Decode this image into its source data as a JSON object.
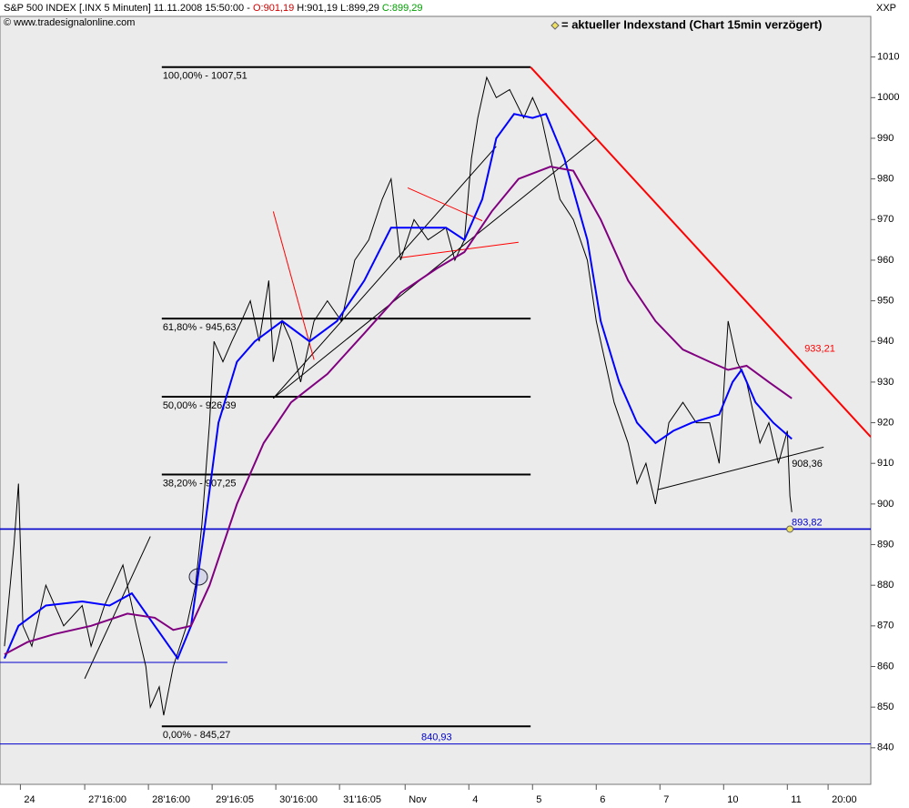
{
  "header": {
    "title": "S&P 500 INDEX [.INX  5 Minuten] 11.11.2008 15:50:00 -",
    "open": "O:901,19",
    "high_low": "H:901,19 L:899,29",
    "close": "C:899,29",
    "copyright": "© www.tradesignalonline.com",
    "legend": "= aktueller Indexstand (Chart 15min verzögert)",
    "corner": "XXP"
  },
  "chart_data": {
    "type": "line",
    "xlim": [
      -0.43,
      13.24
    ],
    "ylim": [
      831,
      1020
    ],
    "yticks": [
      840,
      850,
      860,
      870,
      880,
      890,
      900,
      910,
      920,
      930,
      940,
      950,
      960,
      970,
      980,
      990,
      1000,
      1010
    ],
    "xticks": [
      {
        "value": -0.11,
        "label": "24"
      },
      {
        "value": 0.9,
        "label": "27'16:00"
      },
      {
        "value": 1.9,
        "label": "28'16:00"
      },
      {
        "value": 2.9,
        "label": "29'16:05"
      },
      {
        "value": 3.9,
        "label": "30'16:00"
      },
      {
        "value": 4.9,
        "label": "31'16:05"
      },
      {
        "value": 5.93,
        "label": "Nov"
      },
      {
        "value": 6.93,
        "label": "4"
      },
      {
        "value": 7.93,
        "label": "5"
      },
      {
        "value": 8.93,
        "label": "6"
      },
      {
        "value": 9.93,
        "label": "7"
      },
      {
        "value": 10.93,
        "label": "10"
      },
      {
        "value": 11.93,
        "label": "11"
      },
      {
        "value": 12.57,
        "label": "20:00"
      }
    ],
    "series": [
      {
        "color": "#000000",
        "x": [
          -0.36,
          -0.21,
          -0.14,
          -0.07,
          0.07,
          0.29,
          0.57,
          0.86,
          1.0,
          1.21,
          1.5,
          1.71,
          1.86,
          1.93,
          2.07,
          2.14,
          2.29,
          2.5,
          2.64,
          2.74,
          2.86,
          2.93,
          3.07,
          3.21,
          3.36,
          3.5,
          3.64,
          3.79,
          3.86,
          4.0,
          4.14,
          4.29,
          4.5,
          4.71,
          4.93,
          5.14,
          5.36,
          5.57,
          5.71,
          5.86,
          6.07,
          6.29,
          6.57,
          6.71,
          6.86,
          6.97,
          7.07,
          7.21,
          7.36,
          7.57,
          7.79,
          7.93,
          8.07,
          8.21,
          8.36,
          8.57,
          8.79,
          8.93,
          9.07,
          9.21,
          9.43,
          9.57,
          9.71,
          9.86,
          10.07,
          10.29,
          10.5,
          10.71,
          10.86,
          11.0,
          11.14,
          11.29,
          11.5,
          11.64,
          11.79,
          11.93,
          11.97,
          12.0
        ],
        "values": [
          865,
          890,
          905,
          870,
          865,
          880,
          870,
          875,
          865,
          875,
          885,
          870,
          860,
          850,
          855,
          848,
          860,
          870,
          880,
          895,
          920,
          940,
          935,
          940,
          945,
          950,
          940,
          955,
          935,
          945,
          940,
          930,
          945,
          950,
          945,
          960,
          965,
          975,
          980,
          960,
          970,
          965,
          968,
          960,
          965,
          985,
          995,
          1005,
          1000,
          1002,
          995,
          1000,
          995,
          985,
          975,
          970,
          960,
          945,
          935,
          925,
          915,
          905,
          910,
          900,
          920,
          925,
          920,
          920,
          910,
          945,
          935,
          930,
          915,
          920,
          910,
          918,
          902,
          898
        ]
      },
      {
        "color": "#0000ff",
        "x": [
          -0.36,
          -0.14,
          0.29,
          0.86,
          1.29,
          1.64,
          2.0,
          2.36,
          2.57,
          2.79,
          3.0,
          3.29,
          3.57,
          4.0,
          4.43,
          4.86,
          5.29,
          5.71,
          6.14,
          6.57,
          6.86,
          7.14,
          7.36,
          7.64,
          7.93,
          8.14,
          8.43,
          8.79,
          9.0,
          9.29,
          9.57,
          9.86,
          10.14,
          10.43,
          10.86,
          11.07,
          11.21,
          11.43,
          11.71,
          12.0
        ],
        "values": [
          862,
          870,
          875,
          876,
          875,
          878,
          870,
          862,
          870,
          895,
          920,
          935,
          940,
          945,
          940,
          945,
          955,
          968,
          968,
          968,
          965,
          975,
          990,
          996,
          995,
          996,
          985,
          965,
          945,
          930,
          920,
          915,
          918,
          920,
          922,
          930,
          933,
          925,
          920,
          916
        ]
      },
      {
        "color": "#800080",
        "x": [
          -0.36,
          0,
          0.43,
          1.0,
          1.57,
          2.0,
          2.29,
          2.57,
          2.86,
          3.29,
          3.71,
          4.14,
          4.71,
          5.29,
          5.86,
          6.43,
          6.86,
          7.29,
          7.71,
          8.21,
          8.57,
          9.0,
          9.43,
          9.86,
          10.29,
          10.71,
          11.0,
          11.29,
          11.64,
          12.0
        ],
        "values": [
          863,
          866,
          868,
          870,
          873,
          872,
          869,
          870,
          880,
          900,
          915,
          925,
          932,
          942,
          952,
          958,
          962,
          972,
          980,
          983,
          982,
          970,
          955,
          945,
          938,
          935,
          933,
          934,
          930,
          926
        ]
      }
    ],
    "fib_levels": [
      {
        "label": "100,00% - 1007,51",
        "value": 1007.51,
        "x": [
          2.11,
          7.9
        ]
      },
      {
        "label": "61,80% - 945,63",
        "value": 945.63,
        "x": [
          2.11,
          7.9
        ]
      },
      {
        "label": "50,00% - 926,39",
        "value": 926.39,
        "x": [
          2.11,
          7.9
        ]
      },
      {
        "label": "38,20% - 907,25",
        "value": 907.25,
        "x": [
          2.11,
          7.9
        ]
      },
      {
        "label": "0,00% - 845,27",
        "value": 845.27,
        "x": [
          2.11,
          7.9
        ]
      }
    ],
    "hlines": [
      {
        "value": 893.82,
        "label": "893,82",
        "color": "#0000cc"
      },
      {
        "value": 840.93,
        "label": "840,93",
        "color": "#0000cc"
      }
    ],
    "trendlines": [
      {
        "points": [
          [
            7.9,
            1007.5
          ],
          [
            13.24,
            916.5
          ]
        ],
        "color": "#ff0000",
        "label": "933,21"
      },
      {
        "points": [
          [
            9.89,
            903.5
          ],
          [
            12.5,
            914
          ]
        ],
        "color": "#000000",
        "label": "908,36"
      },
      {
        "points": [
          [
            3.86,
            926
          ],
          [
            7.36,
            988
          ]
        ],
        "color": "#000000"
      },
      {
        "points": [
          [
            3.86,
            926
          ],
          [
            8.93,
            990
          ]
        ],
        "color": "#000000"
      },
      {
        "points": [
          [
            0.9,
            857
          ],
          [
            1.93,
            892
          ]
        ],
        "color": "#000000"
      },
      {
        "points": [
          [
            3.86,
            972
          ],
          [
            4.5,
            935.5
          ]
        ],
        "color": "#ff0000"
      },
      {
        "points": [
          [
            5.97,
            977.8
          ],
          [
            7.14,
            969.7
          ]
        ],
        "color": "#ff0000"
      },
      {
        "points": [
          [
            5.86,
            960.6
          ],
          [
            7.71,
            964.4
          ]
        ],
        "color": "#ff0000"
      },
      {
        "points": [
          [
            -0.43,
            861
          ],
          [
            3.14,
            861
          ]
        ],
        "color": "#0000cc"
      }
    ],
    "current_marker": {
      "x": 11.97,
      "value": 893.82,
      "color": "#f0e060"
    }
  }
}
